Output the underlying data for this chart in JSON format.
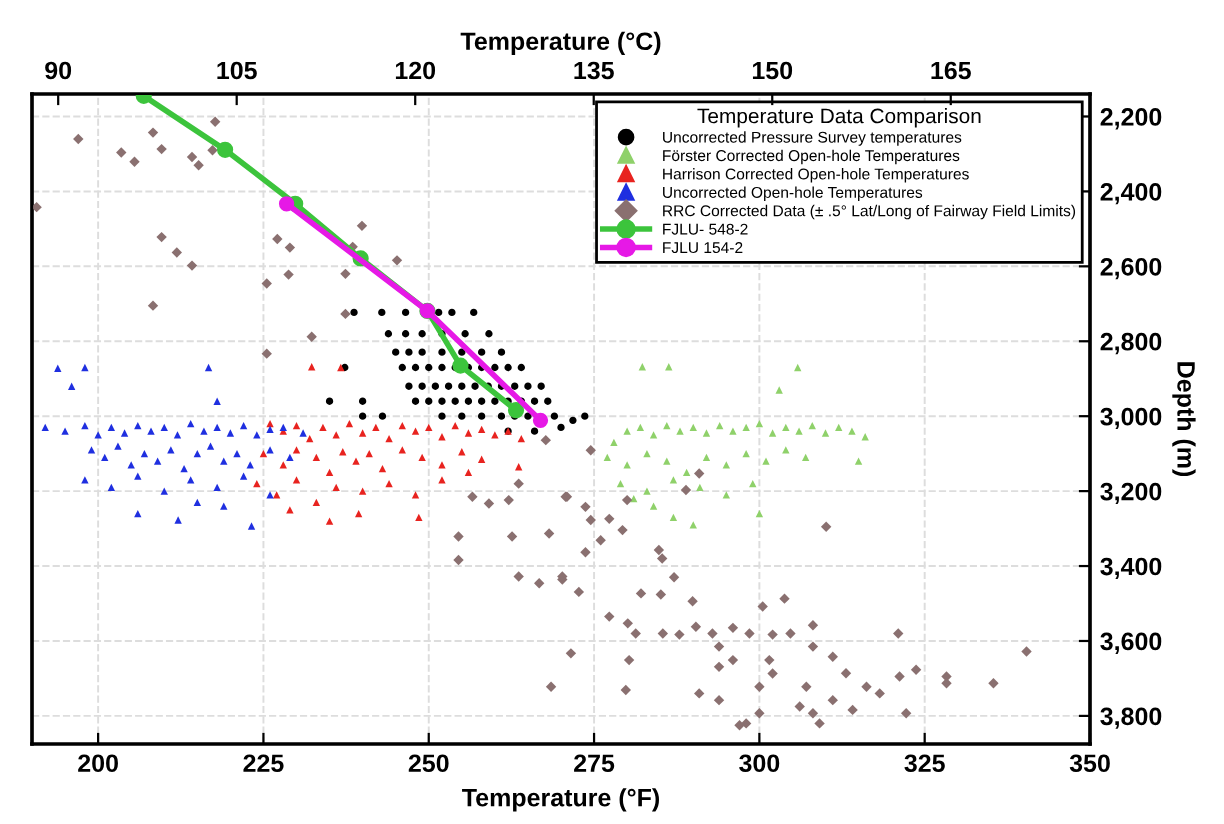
{
  "chart_data": {
    "type": "scatter",
    "xlabel": "Temperature (°F)",
    "x2label": "Temperature (°C)",
    "ylabel": "Depth (m)",
    "legend_title": "Temperature Data Comparison",
    "legend": "top right",
    "grid": true,
    "xlim": [
      190,
      350
    ],
    "xticks": [
      200,
      225,
      250,
      275,
      300,
      325,
      350
    ],
    "x2lim": [
      87.8,
      176.7
    ],
    "x2ticks": [
      90,
      105,
      120,
      135,
      150,
      165
    ],
    "ylim": [
      3875,
      2140
    ],
    "yticks": [
      {
        "value": 2200,
        "label": "2,200"
      },
      {
        "value": 2400,
        "label": "2,400"
      },
      {
        "value": 2600,
        "label": "2,600"
      },
      {
        "value": 2800,
        "label": "2,800"
      },
      {
        "value": 3000,
        "label": "3,000"
      },
      {
        "value": 3200,
        "label": "3,200"
      },
      {
        "value": 3400,
        "label": "3,400"
      },
      {
        "value": 3600,
        "label": "3,600"
      },
      {
        "value": 3800,
        "label": "3,800"
      }
    ],
    "series": [
      {
        "name": "Uncorrected Pressure Survey temperatures",
        "marker": "circle",
        "color": "#000000",
        "x": [
          238.7,
          242.9,
          246.5,
          251.5,
          253.5,
          256.8,
          243.9,
          246.5,
          249,
          252,
          255.5,
          259.1,
          245,
          247,
          249,
          252,
          255,
          258,
          261,
          246,
          248,
          250,
          252,
          254,
          256,
          258,
          260,
          262,
          264,
          247,
          249,
          251,
          253,
          255,
          257,
          259,
          261,
          263,
          265,
          267,
          240,
          248,
          250,
          252,
          254,
          256,
          258,
          260,
          262,
          264,
          266,
          268,
          240,
          243,
          252,
          255,
          258,
          261,
          263,
          265,
          267,
          269,
          271.8,
          273.6,
          262,
          266,
          270,
          237.3,
          235
        ],
        "values": [
          2723,
          2723,
          2723,
          2723,
          2723,
          2723,
          2780,
          2780,
          2780,
          2780,
          2780,
          2780,
          2829,
          2829,
          2829,
          2829,
          2829,
          2829,
          2829,
          2870,
          2870,
          2870,
          2870,
          2870,
          2870,
          2870,
          2870,
          2870,
          2870,
          2920,
          2920,
          2920,
          2920,
          2920,
          2920,
          2920,
          2920,
          2920,
          2920,
          2920,
          2960,
          2960,
          2960,
          2960,
          2960,
          2960,
          2960,
          2960,
          2960,
          2960,
          2960,
          2960,
          3000,
          3000,
          3000,
          3000,
          3000,
          3000,
          3000,
          3000,
          null,
          3000,
          3011,
          3000,
          3040,
          3040,
          3030,
          2870,
          2960
        ]
      },
      {
        "name": "Förster Corrected Open-hole Temperatures",
        "marker": "triangle",
        "color": "#8fd16a",
        "x": [
          282.3,
          286.3,
          305.8,
          303,
          278,
          280,
          282,
          284,
          286,
          288,
          290,
          292,
          294,
          296,
          298,
          300,
          302,
          304,
          306,
          308,
          310,
          312,
          314,
          316,
          277,
          280,
          283,
          286,
          289,
          292,
          295,
          298,
          301,
          304,
          307,
          315,
          279,
          283,
          287,
          291,
          295,
          299,
          284,
          287,
          290,
          300,
          281
        ],
        "values": [
          2868,
          2868,
          2870,
          2930,
          3070,
          3040,
          3030,
          3050,
          3025,
          3040,
          3030,
          3045,
          3025,
          3040,
          3030,
          3020,
          3045,
          3030,
          3040,
          3025,
          3045,
          3030,
          3040,
          3055,
          3110,
          3130,
          3100,
          3120,
          3150,
          3110,
          3130,
          3100,
          3120,
          3090,
          3110,
          3120,
          3180,
          3200,
          3170,
          3190,
          3210,
          3180,
          3240,
          3270,
          3290,
          3260,
          3220
        ]
      },
      {
        "name": "Harrison Corrected Open-hole Temperatures",
        "marker": "triangle",
        "color": "#e8231f",
        "x": [
          232.3,
          236.7,
          226,
          228,
          230,
          232,
          234,
          236,
          238,
          240,
          242,
          244,
          246,
          248,
          250,
          252,
          254,
          256,
          258,
          260,
          262,
          264,
          225,
          228,
          230,
          233,
          235,
          237,
          239,
          241,
          243,
          246,
          249,
          252,
          255,
          258,
          263.6,
          224,
          227,
          230,
          233,
          236,
          240,
          244,
          248,
          252,
          239.4,
          248.5,
          229,
          235,
          256
        ],
        "values": [
          2868,
          2870,
          3020,
          3040,
          3025,
          3060,
          3030,
          3050,
          3020,
          3045,
          3030,
          3060,
          3025,
          3040,
          3030,
          3055,
          3025,
          3045,
          3035,
          3050,
          3040,
          3060,
          3100,
          3130,
          3090,
          3110,
          3150,
          3095,
          3120,
          3100,
          3140,
          3090,
          3110,
          3130,
          3095,
          3115,
          3135,
          3180,
          3210,
          3170,
          3230,
          3190,
          3200,
          3180,
          3210,
          3170,
          3260,
          3270,
          3250,
          3280,
          3150
        ]
      },
      {
        "name": "Uncorrected Open-hole Temperatures",
        "marker": "triangle",
        "color": "#1f2fe0",
        "x": [
          193.9,
          198,
          216.7,
          196,
          218,
          192,
          195,
          198,
          200,
          202,
          204,
          206,
          208,
          210,
          212,
          214,
          216,
          218,
          220,
          222,
          224,
          226,
          228,
          231,
          199,
          201,
          203,
          205,
          207,
          209,
          211,
          213,
          215,
          217,
          219,
          221,
          223,
          226,
          229,
          198,
          202,
          206,
          210,
          214,
          218,
          222,
          226,
          206,
          212.1,
          223.2,
          219,
          215
        ],
        "values": [
          2872,
          2870,
          2870,
          2920,
          2960,
          3030,
          3040,
          3025,
          3050,
          3030,
          3045,
          3025,
          3040,
          3030,
          3050,
          3020,
          3040,
          3030,
          3045,
          3025,
          3050,
          3035,
          3030,
          3045,
          3090,
          3110,
          3080,
          3130,
          3100,
          3120,
          3090,
          3140,
          3100,
          3080,
          3120,
          3100,
          3130,
          3090,
          3110,
          3170,
          3190,
          3160,
          3200,
          3170,
          3190,
          3160,
          3210,
          3260,
          3277,
          3293,
          3240,
          3230
        ]
      },
      {
        "name": "RRC Corrected Data (± .5° Lat/Long of Fairway Field Limits)",
        "marker": "diamond",
        "color": "#8a7070",
        "x": [
          197,
          203.5,
          205.5,
          208.3,
          209.6,
          214.2,
          215.2,
          217.7,
          217.3,
          190.7,
          209.6,
          211.9,
          214.2,
          208.3,
          227.1,
          229,
          239.9,
          238.5,
          245.2,
          237.4,
          228.8,
          225.5,
          237.4,
          232.3,
          225.5,
          274.5,
          270.9,
          268.2,
          273.7,
          274.5,
          266.7,
          270.2,
          272.7,
          276,
          277.3,
          280,
          279.3,
          284.8,
          285.3,
          287.1,
          282.1,
          285.1,
          289.9,
          277.3,
          280.1,
          281.3,
          285.4,
          287.9,
          290.4,
          292.9,
          293.9,
          296,
          298.5,
          300.5,
          302,
          303.8,
          304.7,
          308.1,
          301.5,
          296,
          293.9,
          300,
          302,
          308.1,
          311.1,
          313.1,
          316.2,
          318.2,
          307.1,
          306.1,
          308.1,
          311.1,
          314.1,
          300,
          298,
          309.1,
          322.2,
          321.2,
          323.7,
          328.3,
          328.3,
          335.4,
          340.4,
          321,
          310.1,
          290.9,
          288.9,
          268.5,
          271.5,
          279.8,
          280.3,
          290.9,
          293.9,
          297,
          256.6,
          259.1,
          262.1,
          263.6,
          254.5,
          262.6,
          254.5,
          273.7,
          270.7,
          263.6,
          270.2,
          267.7
        ],
        "values": [
          2260,
          2296,
          2321,
          2243,
          2287,
          2308,
          2330,
          2214,
          2290,
          2442,
          2522,
          2563,
          2598,
          2705,
          2527,
          2550,
          2492,
          2548,
          2584,
          2620,
          2622,
          2646,
          2727,
          2788,
          2833,
          3091,
          3215,
          3313,
          3363,
          3277,
          3446,
          3436,
          3469,
          3331,
          3274,
          3224,
          3304,
          3357,
          3380,
          3430,
          3473,
          3476,
          3494,
          3535,
          3553,
          3580,
          3580,
          3583,
          3562,
          3580,
          3615,
          3565,
          3580,
          3508,
          3583,
          3487,
          3580,
          3558,
          3651,
          3651,
          3669,
          3722,
          3687,
          3615,
          3642,
          3686,
          3722,
          3740,
          3722,
          3775,
          3793,
          3758,
          3784,
          3793,
          3820,
          3820,
          3793,
          3695,
          3677,
          3695,
          3713,
          3713,
          3628,
          3580,
          3295,
          3153,
          3197,
          3722,
          3633,
          3731,
          3651,
          3740,
          3758,
          3825,
          3215,
          3233,
          3224,
          3180,
          3321,
          3321,
          3384,
          3242,
          3215,
          3428,
          3428,
          3064
        ]
      },
      {
        "name": "FJLU- 548-2",
        "type": "line",
        "marker": "circle",
        "color": "#3cc43c",
        "x": [
          206.9,
          219.2,
          229.8,
          239.7,
          249.8,
          254.8,
          263.2
        ],
        "values": [
          2145,
          2289,
          2433,
          2579,
          2719,
          2865,
          2984
        ]
      },
      {
        "name": "FJLU 154-2",
        "type": "line",
        "marker": "circle",
        "color": "#e619e6",
        "x": [
          228.5,
          249.8,
          266.9
        ],
        "values": [
          2433,
          2719,
          3011
        ]
      }
    ]
  }
}
